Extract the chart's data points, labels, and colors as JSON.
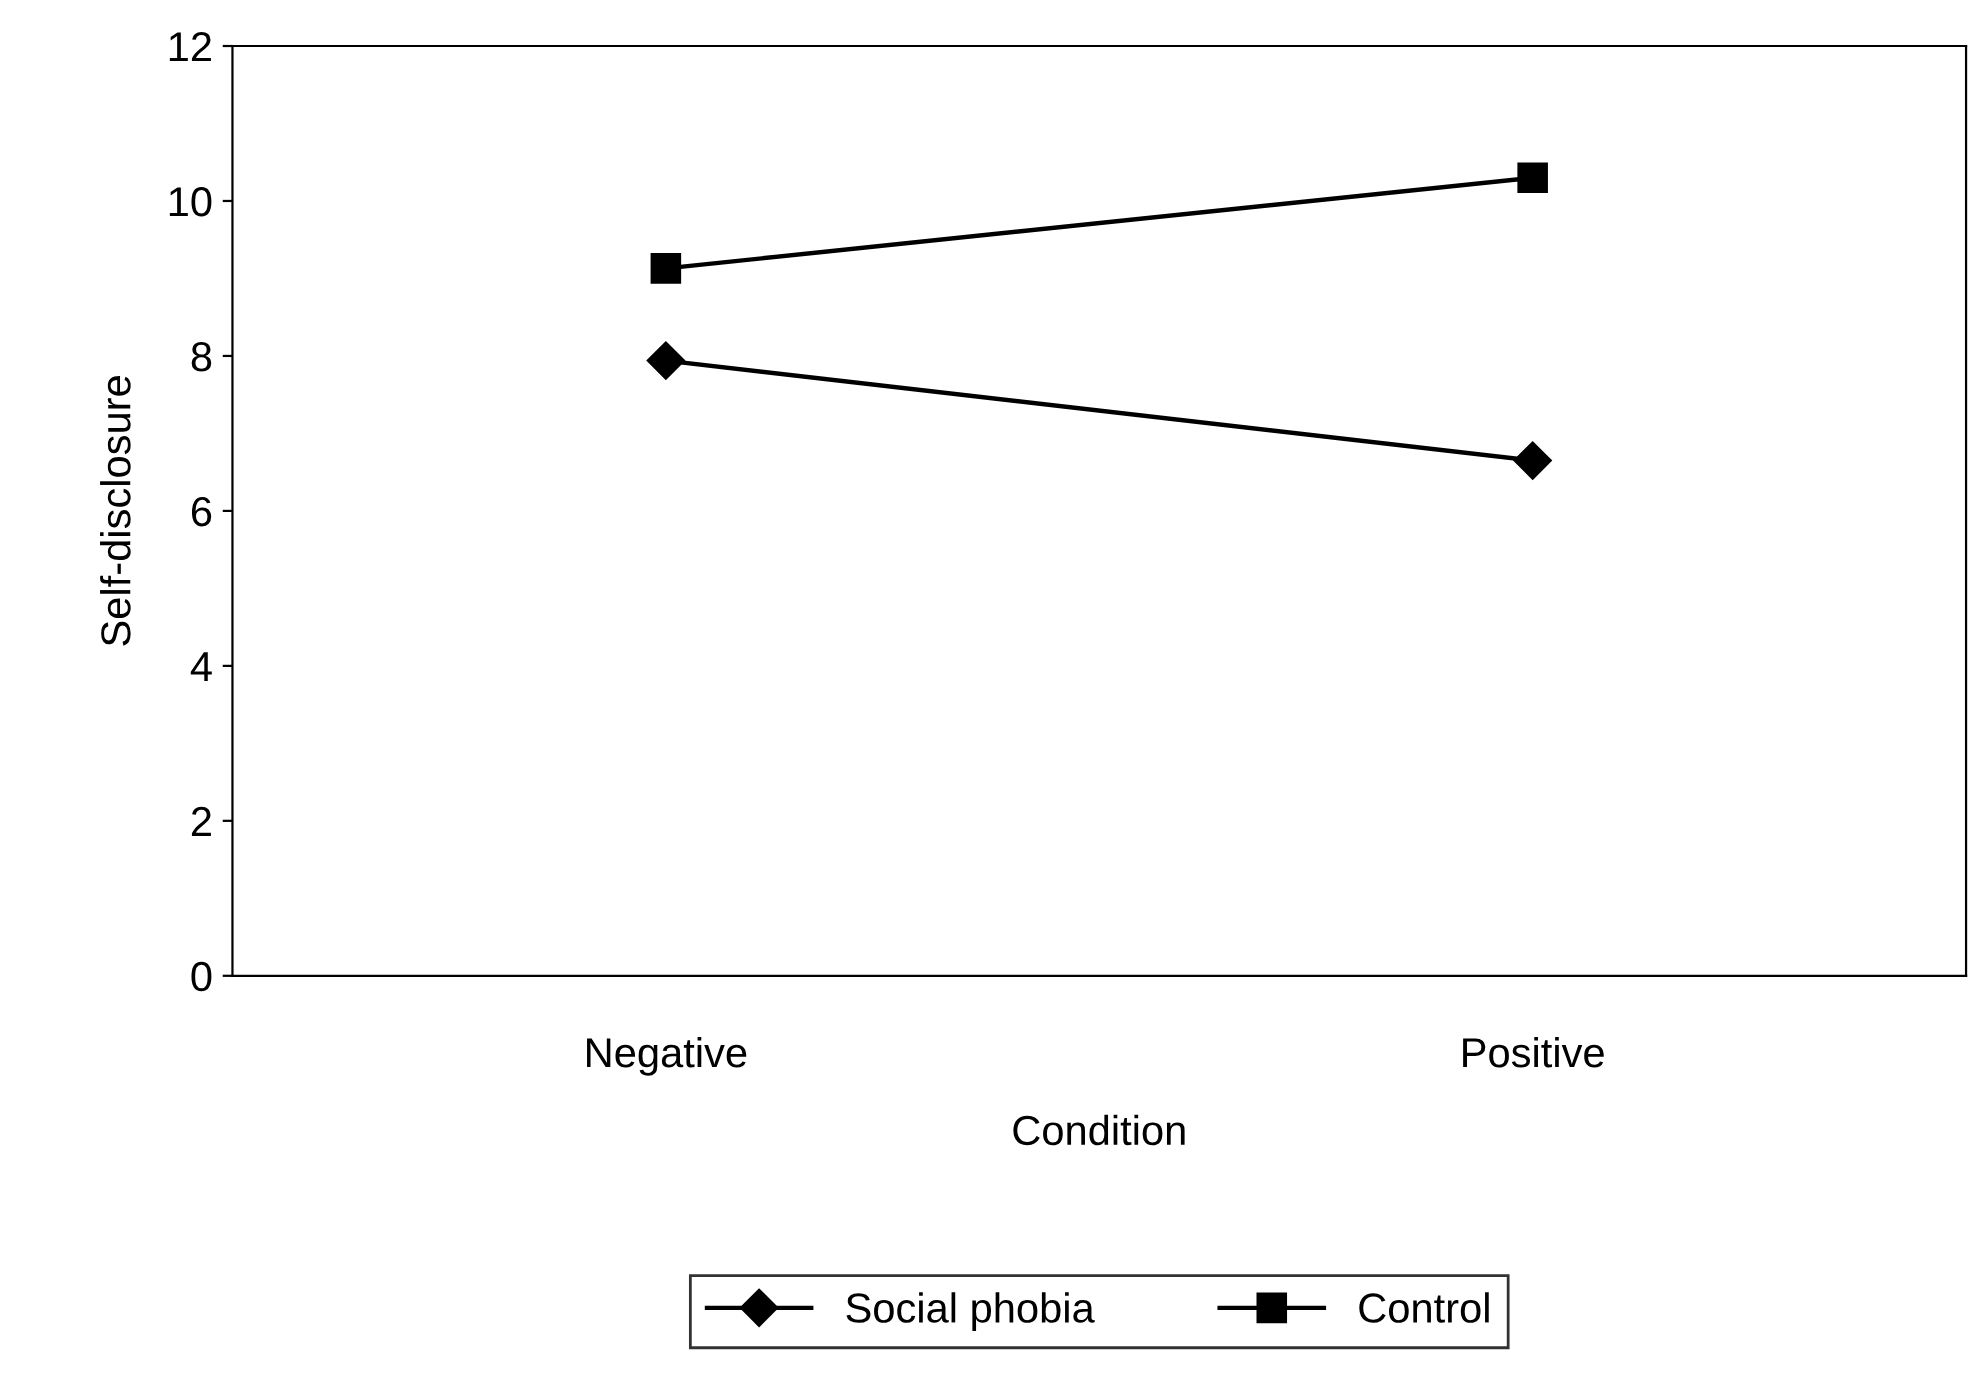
{
  "chart_data": {
    "type": "line",
    "xlabel": "Condition",
    "ylabel": "Self-disclosure",
    "categories": [
      "Negative",
      "Positive"
    ],
    "series": [
      {
        "name": "Social phobia",
        "color": "#000000",
        "values": [
          7.94,
          6.65
        ],
        "marker": "diamond"
      },
      {
        "name": "Control",
        "color": "#000000",
        "values": [
          9.13,
          10.3
        ],
        "marker": "square"
      }
    ],
    "ylim": [
      0,
      12
    ],
    "yticks": [
      0,
      2,
      4,
      6,
      8,
      10,
      12
    ],
    "grid": false,
    "legend": "bottom",
    "line_style": "solid"
  }
}
